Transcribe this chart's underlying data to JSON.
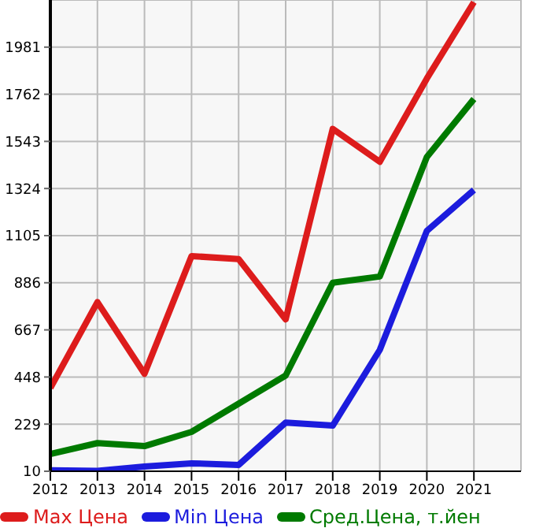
{
  "chart_data": {
    "type": "line",
    "x": [
      2012,
      2013,
      2014,
      2015,
      2016,
      2017,
      2018,
      2019,
      2020,
      2021
    ],
    "series": [
      {
        "name": "Max Цена",
        "color": "#dd1c1c",
        "values": [
          397,
          796,
          463,
          1010,
          996,
          716,
          1601,
          1448,
          1835,
          2190
        ]
      },
      {
        "name": "Min Цена",
        "color": "#1c1cdd",
        "values": [
          15,
          12,
          32,
          47,
          39,
          236,
          222,
          574,
          1127,
          1317
        ]
      },
      {
        "name": "Сред.Цена, т.йен",
        "color": "#007a00",
        "values": [
          90,
          141,
          127,
          193,
          324,
          455,
          886,
          915,
          1470,
          1740
        ]
      }
    ],
    "xlim": [
      2012,
      2022
    ],
    "xticks": [
      2012,
      2013,
      2014,
      2015,
      2016,
      2017,
      2018,
      2019,
      2020,
      2021
    ],
    "ylim": [
      10,
      2200
    ],
    "yticks": [
      10,
      229,
      448,
      667,
      886,
      1105,
      1324,
      1543,
      1762,
      1981
    ],
    "grid": true,
    "legend": "bottom",
    "marker": "none",
    "line_style": "solid"
  }
}
